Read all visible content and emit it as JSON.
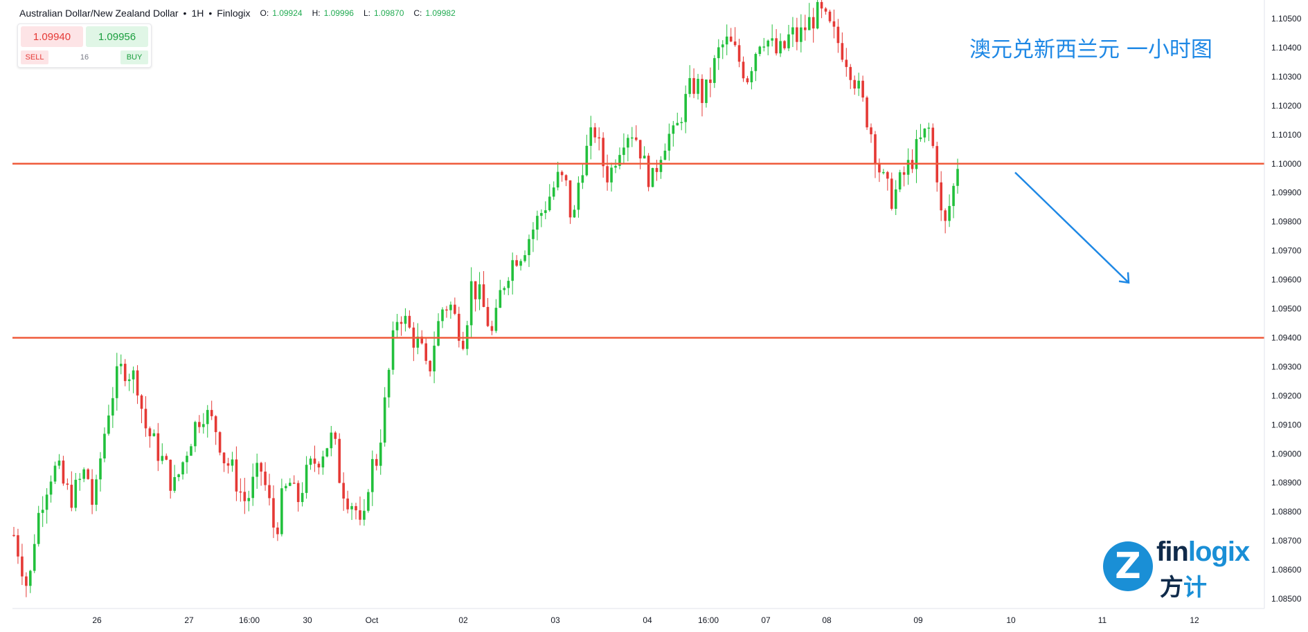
{
  "legend": {
    "symbol": "Australian Dollar/New Zealand Dollar",
    "sep1": "•",
    "interval": "1H",
    "sep2": "•",
    "provider": "Finlogix",
    "o_label": "O:",
    "o_value": "1.09924",
    "h_label": "H:",
    "h_value": "1.09996",
    "l_label": "L:",
    "l_value": "1.09870",
    "c_label": "C:",
    "c_value": "1.09982"
  },
  "trade": {
    "sell_price": "1.09940",
    "buy_price": "1.09956",
    "sell_label": "SELL",
    "buy_label": "BUY",
    "spread": "16"
  },
  "annotation": {
    "title": "澳元兑新西兰元 一小时图"
  },
  "logo": {
    "mark": "Z",
    "word_a": "fin",
    "word_b": "logix",
    "cn_a": "方",
    "cn_b": "计"
  },
  "colors": {
    "up": "#22c03c",
    "down": "#e53935",
    "level_line": "#ef5a3a",
    "arrow": "#1e88e5",
    "axis_text": "#131722"
  },
  "chart_data": {
    "type": "candlestick",
    "title": "Australian Dollar/New Zealand Dollar • 1H • Finlogix",
    "y_ticks": [
      "1.10500",
      "1.10400",
      "1.10300",
      "1.10200",
      "1.10100",
      "1.10000",
      "1.09900",
      "1.09800",
      "1.09700",
      "1.09600",
      "1.09500",
      "1.09400",
      "1.09300",
      "1.09200",
      "1.09100",
      "1.09000",
      "1.08900",
      "1.08800",
      "1.08700",
      "1.08600",
      "1.08500"
    ],
    "ylim": [
      1.085,
      1.1055
    ],
    "x_ticks": [
      "26",
      "27",
      "16:00",
      "30",
      "Oct",
      "02",
      "03",
      "04",
      "16:00",
      "07",
      "08",
      "09",
      "10",
      "11",
      "12"
    ],
    "horizontal_levels": [
      1.1,
      1.094
    ],
    "arrow": {
      "from_date": "10",
      "from_price": 1.0997,
      "to_date": "11",
      "to_price": 1.0959,
      "direction": "down"
    },
    "last_close": 1.09982,
    "path": [
      1.0872,
      1.0863,
      1.0852,
      1.0875,
      1.0885,
      1.0893,
      1.0895,
      1.0888,
      1.0885,
      1.089,
      1.0895,
      1.088,
      1.09,
      1.0915,
      1.0925,
      1.093,
      1.0928,
      1.0925,
      1.091,
      1.0905,
      1.09,
      1.0895,
      1.0888,
      1.0895,
      1.0903,
      1.091,
      1.0915,
      1.0912,
      1.0908,
      1.0898,
      1.0895,
      1.0888,
      1.0883,
      1.089,
      1.0895,
      1.0885,
      1.0872,
      1.0885,
      1.089,
      1.0883,
      1.0891,
      1.0896,
      1.0899,
      1.0903,
      1.0906,
      1.089,
      1.0885,
      1.0882,
      1.087,
      1.0895,
      1.0898,
      1.0915,
      1.0935,
      1.095,
      1.0945,
      1.094,
      1.0937,
      1.0926,
      1.094,
      1.095,
      1.0952,
      1.0945,
      1.094,
      1.0958,
      1.0955,
      1.0948,
      1.094,
      1.0955,
      1.0963,
      1.0968,
      1.097,
      1.0975,
      1.098,
      1.0985,
      1.099,
      1.0995,
      1.0993,
      1.0978,
      1.0998,
      1.1005,
      1.1012,
      1.1001,
      1.0995,
      1.1004,
      1.101,
      1.1012,
      1.1008,
      1.0998,
      1.0994,
      1.1004,
      1.101,
      1.1009,
      1.1018,
      1.1025,
      1.1028,
      1.1022,
      1.103,
      1.1038,
      1.1042,
      1.104,
      1.1035,
      1.103,
      1.1038,
      1.1045,
      1.1042,
      1.1038,
      1.1039,
      1.1045,
      1.1043,
      1.1047,
      1.105,
      1.1052,
      1.1048,
      1.1044,
      1.104,
      1.1035,
      1.1028,
      1.102,
      1.1012,
      1.1,
      1.0992,
      1.0988,
      1.0993,
      1.0998,
      1.1003,
      1.1008,
      1.1012,
      1.1001,
      1.0975,
      1.0987,
      1.0998
    ]
  }
}
